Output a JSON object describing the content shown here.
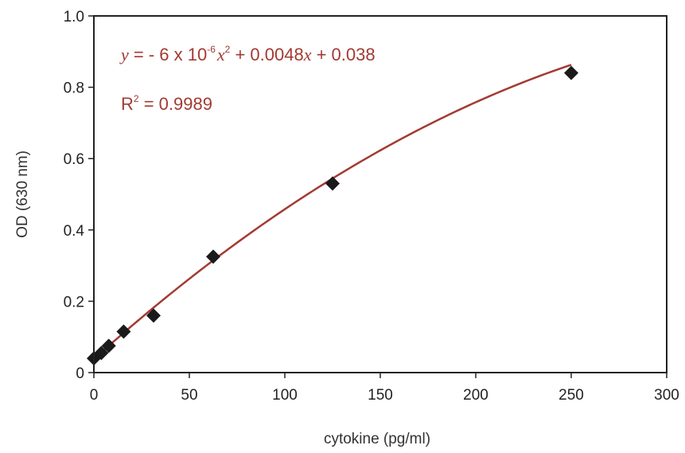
{
  "chart_data": {
    "type": "scatter",
    "xlabel": "cytokine (pg/ml)",
    "ylabel": "OD (630 nm)",
    "xlim": [
      0,
      300
    ],
    "ylim": [
      0,
      1.0
    ],
    "x_ticks": [
      0,
      50,
      100,
      150,
      200,
      250,
      300
    ],
    "x_tick_labels": [
      "0",
      "50",
      "100",
      "150",
      "200",
      "250",
      "300"
    ],
    "y_ticks": [
      0,
      0.2,
      0.4,
      0.6,
      0.8,
      1.0
    ],
    "y_tick_labels": [
      "0",
      "0.2",
      "0.4",
      "0.6",
      "0.8",
      "1.0"
    ],
    "grid": false,
    "series": [
      {
        "marker": "diamond",
        "color": "#1a1a1a",
        "points": [
          {
            "x": 0,
            "y": 0.04
          },
          {
            "x": 3.9,
            "y": 0.055
          },
          {
            "x": 7.8,
            "y": 0.075
          },
          {
            "x": 15.6,
            "y": 0.115
          },
          {
            "x": 31.25,
            "y": 0.16
          },
          {
            "x": 62.5,
            "y": 0.325
          },
          {
            "x": 125,
            "y": 0.53
          },
          {
            "x": 250,
            "y": 0.84
          }
        ]
      }
    ],
    "fit": {
      "type": "polynomial",
      "coefficients": {
        "a": -6e-06,
        "b": 0.0048,
        "c": 0.038
      },
      "x_range": [
        0,
        250
      ],
      "color": "#a33a32"
    },
    "annotations": {
      "color": "#a33a32",
      "equation": {
        "y_var": "y",
        "eq_part1": " = - 6 x 10",
        "exp": "-6",
        "x_var1": "x",
        "sq": "2",
        "eq_part2": " + 0.0048",
        "x_var2": "x",
        "eq_part3": " + 0.038"
      },
      "r_squared": {
        "r": "R",
        "sq": "2",
        "rest": " = 0.9989"
      }
    }
  }
}
